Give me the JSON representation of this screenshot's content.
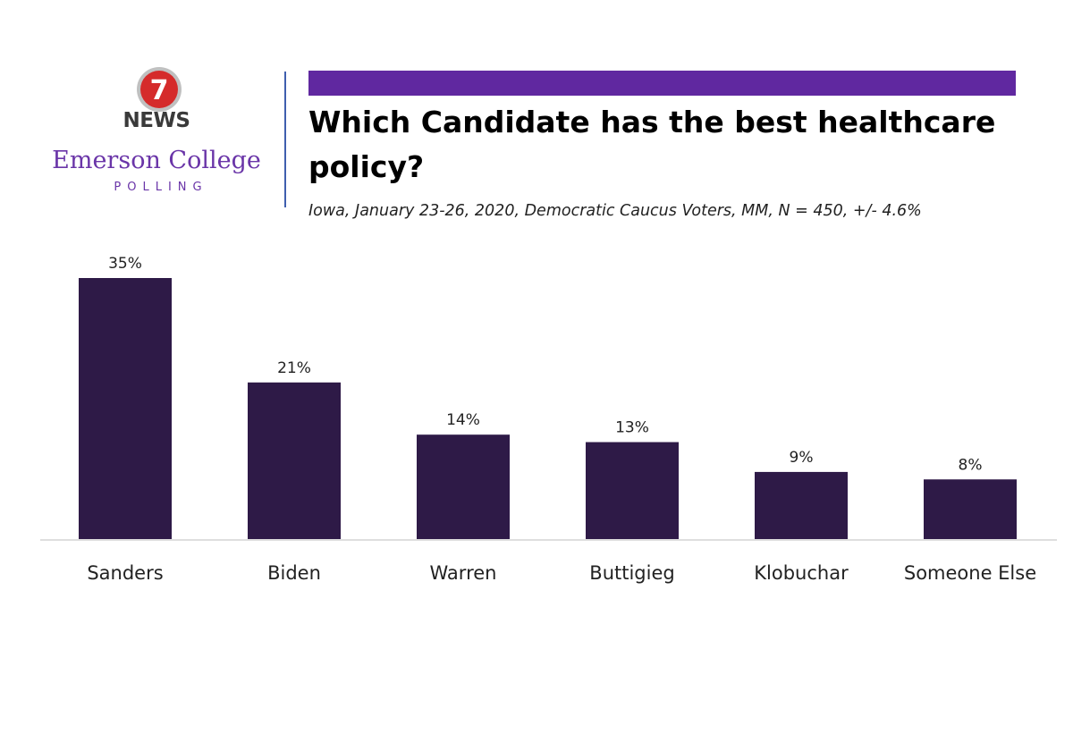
{
  "logo": {
    "badge": "7",
    "network": "NEWS",
    "org": "Emerson College",
    "unit": "POLLING"
  },
  "colors": {
    "accent": "#6028a0",
    "bar": "#2e1a47",
    "brand_text": "#6a35a8",
    "divider": "#3f5fae"
  },
  "chart_data": {
    "type": "bar",
    "title": "Which Candidate has the best healthcare policy?",
    "subtitle": "Iowa, January 23-26, 2020, Democratic Caucus Voters, MM, N = 450, +/- 4.6%",
    "categories": [
      "Sanders",
      "Biden",
      "Warren",
      "Buttigieg",
      "Klobuchar",
      "Someone Else"
    ],
    "values": [
      35,
      21,
      14,
      13,
      9,
      8
    ],
    "value_labels": [
      "35%",
      "21%",
      "14%",
      "13%",
      "9%",
      "8%"
    ],
    "xlabel": "",
    "ylabel": "",
    "ylim": [
      0,
      35
    ],
    "grid": false,
    "legend": "none"
  }
}
